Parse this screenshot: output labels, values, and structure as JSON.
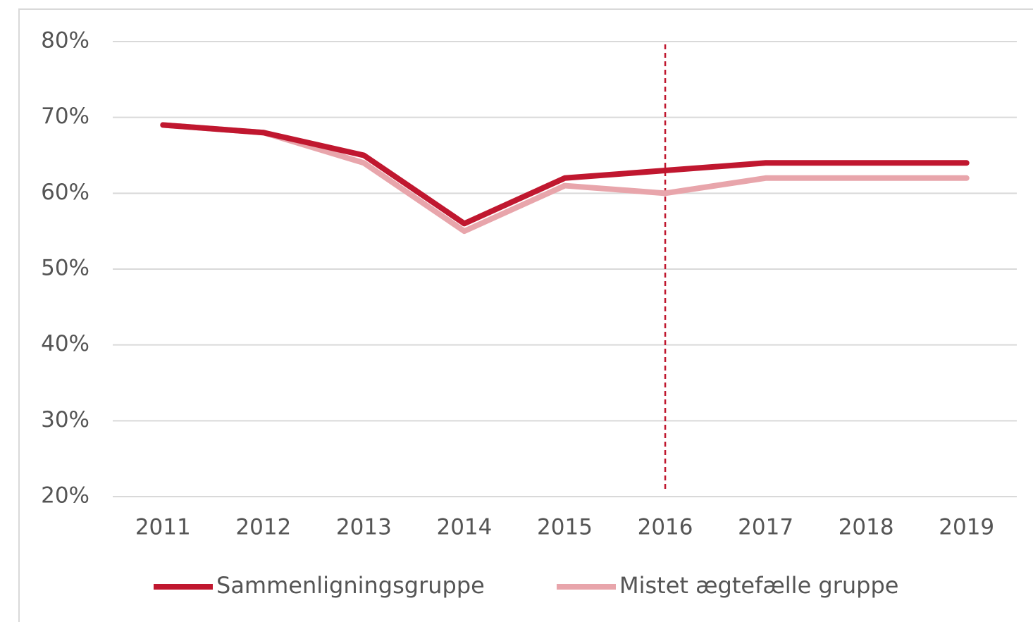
{
  "chart_data": {
    "type": "line",
    "categories": [
      "2011",
      "2012",
      "2013",
      "2014",
      "2015",
      "2016",
      "2017",
      "2018",
      "2019"
    ],
    "series": [
      {
        "name": "Sammenligningsgruppe",
        "color": "#c0172f",
        "values": [
          69,
          68,
          65,
          56,
          62,
          63,
          64,
          64,
          64
        ]
      },
      {
        "name": "Mistet ægtefælle gruppe",
        "color": "#e8a5ab",
        "values": [
          69,
          68,
          64,
          55,
          61,
          60,
          62,
          62,
          62
        ]
      }
    ],
    "ylim": [
      20,
      80
    ],
    "yticks": [
      {
        "value": 20,
        "label": "20%"
      },
      {
        "value": 30,
        "label": "30%"
      },
      {
        "value": 40,
        "label": "40%"
      },
      {
        "value": 50,
        "label": "50%"
      },
      {
        "value": 60,
        "label": "60%"
      },
      {
        "value": 70,
        "label": "70%"
      },
      {
        "value": 80,
        "label": "80%"
      }
    ],
    "grid": true,
    "legend": "bottom",
    "reference_line": {
      "x": "2016",
      "color": "#c0172f",
      "style": "dashed"
    }
  }
}
